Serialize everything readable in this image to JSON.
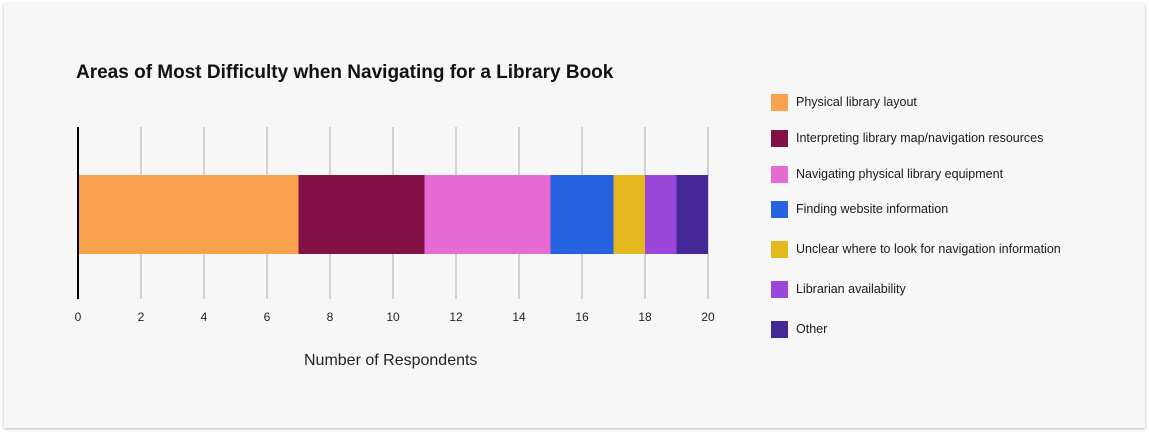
{
  "chart_data": {
    "type": "bar",
    "orientation": "horizontal",
    "stacked": true,
    "title": "Areas of Most Difficulty when Navigating for a Library Book",
    "xlabel": "Number of Respondents",
    "ylabel": "",
    "xlim": [
      0,
      20
    ],
    "xticks": [
      "0",
      "2",
      "4",
      "6",
      "8",
      "10",
      "12",
      "14",
      "16",
      "18",
      "20"
    ],
    "grid": true,
    "legend_position": "right",
    "series": [
      {
        "name": "Physical library layout",
        "value": 7,
        "color": "#F9A24E"
      },
      {
        "name": "Interpreting library map/navigation resources",
        "value": 4,
        "color": "#821246"
      },
      {
        "name": "Navigating physical library equipment",
        "value": 4,
        "color": "#E56BD3"
      },
      {
        "name": "Finding website information",
        "value": 2,
        "color": "#2563E0"
      },
      {
        "name": "Unclear where to look for navigation information",
        "value": 1,
        "color": "#E5B81D"
      },
      {
        "name": "Librarian availability",
        "value": 1,
        "color": "#9A47DA"
      },
      {
        "name": "Other",
        "value": 1,
        "color": "#432896"
      }
    ]
  }
}
